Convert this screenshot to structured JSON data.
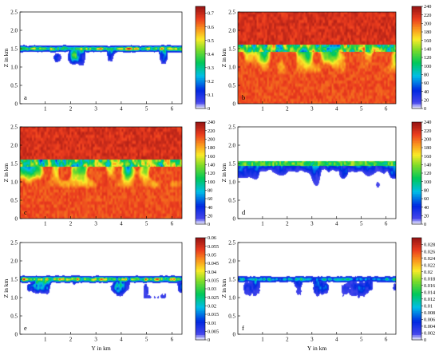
{
  "chart_data": [
    {
      "panel": "a",
      "type": "heatmap",
      "variant": "sparse",
      "colormap": "rainbow_white_low",
      "ylabel": "Z in km",
      "xlabel": "",
      "xlim": [
        0,
        6.4
      ],
      "ylim": [
        0,
        2.5
      ],
      "x_ticks": [
        1,
        2,
        3,
        4,
        5,
        6
      ],
      "y_ticks": [
        0,
        0.5,
        1.0,
        1.5,
        2.0,
        2.5
      ],
      "y_tick_labels": [
        "0",
        "0.5",
        "1.0",
        "1.5",
        "2.0",
        "2.5"
      ],
      "show_x_tick_labels": true,
      "colorbar": {
        "min": 0,
        "max": 0.75,
        "ticks": [
          0,
          0.1,
          0.2,
          0.3,
          0.4,
          0.5,
          0.6,
          0.7
        ],
        "tick_labels": [
          "0",
          "0.1",
          "0.2",
          "0.3",
          "0.4",
          "0.5",
          "0.6",
          "0.7"
        ]
      },
      "field": {
        "layer_center_km": 1.5,
        "layer_peak": 0.6,
        "background": 0
      }
    },
    {
      "panel": "b",
      "type": "heatmap",
      "variant": "mixed_layer",
      "colormap": "rainbow_white_low",
      "ylabel": "Z in km",
      "xlabel": "",
      "xlim": [
        0,
        6.4
      ],
      "ylim": [
        0,
        2.5
      ],
      "x_ticks": [
        1,
        2,
        3,
        4,
        5,
        6
      ],
      "y_ticks": [
        0,
        0.5,
        1.0,
        1.5,
        2.0,
        2.5
      ],
      "y_tick_labels": [
        "0",
        "0.5",
        "1.0",
        "1.5",
        "2.0",
        "2.5"
      ],
      "show_x_tick_labels": true,
      "colorbar": {
        "min": 0,
        "max": 240,
        "ticks": [
          0,
          20,
          40,
          60,
          80,
          100,
          120,
          140,
          160,
          180,
          200,
          220,
          240
        ],
        "tick_labels": [
          "0",
          "20",
          "40",
          "60",
          "80",
          "100",
          "120",
          "140",
          "160",
          "180",
          "200",
          "220",
          "240"
        ]
      },
      "field": {
        "layer_center_km": 1.5,
        "background": 225
      }
    },
    {
      "panel": "c",
      "type": "heatmap",
      "variant": "mixed_layer",
      "colormap": "rainbow_white_low",
      "ylabel": "Z in km",
      "xlabel": "",
      "xlim": [
        0,
        6.4
      ],
      "ylim": [
        0,
        2.5
      ],
      "x_ticks": [
        1,
        2,
        3,
        4,
        5,
        6
      ],
      "y_ticks": [
        0,
        0.5,
        1.0,
        1.5,
        2.0,
        2.5
      ],
      "y_tick_labels": [
        "0",
        "0.5",
        "1.0",
        "1.5",
        "2.0",
        "2.5"
      ],
      "show_x_tick_labels": true,
      "colorbar": {
        "min": 0,
        "max": 240,
        "ticks": [
          0,
          20,
          40,
          60,
          80,
          100,
          120,
          140,
          160,
          180,
          200,
          220,
          240
        ],
        "tick_labels": [
          "0",
          "20",
          "40",
          "60",
          "80",
          "100",
          "120",
          "140",
          "160",
          "180",
          "200",
          "220",
          "240"
        ]
      },
      "field": {
        "layer_center_km": 1.5,
        "background": 225
      }
    },
    {
      "panel": "d",
      "type": "heatmap",
      "variant": "below_layer",
      "colormap": "rainbow_white_low",
      "ylabel": "Z in km",
      "xlabel": "",
      "xlim": [
        0,
        6.4
      ],
      "ylim": [
        0,
        2.5
      ],
      "x_ticks": [
        1,
        2,
        3,
        4,
        5,
        6
      ],
      "y_ticks": [
        0,
        0.5,
        1.0,
        1.5,
        2.0,
        2.5
      ],
      "y_tick_labels": [
        "0",
        "0.5",
        "1.0",
        "1.5",
        "2.0",
        "2.5"
      ],
      "show_x_tick_labels": true,
      "colorbar": {
        "min": 0,
        "max": 240,
        "ticks": [
          0,
          20,
          40,
          60,
          80,
          100,
          120,
          140,
          160,
          180,
          200,
          220,
          240
        ],
        "tick_labels": [
          "0",
          "20",
          "40",
          "60",
          "80",
          "100",
          "120",
          "140",
          "160",
          "180",
          "200",
          "220",
          "240"
        ]
      },
      "field": {
        "layer_center_km": 1.5,
        "background": 0
      }
    },
    {
      "panel": "e",
      "type": "heatmap",
      "variant": "sparse",
      "colormap": "rainbow_white_low",
      "ylabel": "Z in km",
      "xlabel": "Y in km",
      "xlim": [
        0,
        6.4
      ],
      "ylim": [
        0,
        2.5
      ],
      "x_ticks": [
        1,
        2,
        3,
        4,
        5,
        6
      ],
      "y_ticks": [
        0,
        0.5,
        1.0,
        1.5,
        2.0,
        2.5
      ],
      "y_tick_labels": [
        "0",
        "0.5",
        "1.0",
        "1.5",
        "2.0",
        "2.5"
      ],
      "show_x_tick_labels": true,
      "colorbar": {
        "min": 0,
        "max": 0.06,
        "ticks": [
          0,
          0.005,
          0.01,
          0.015,
          0.02,
          0.025,
          0.03,
          0.035,
          0.04,
          0.045,
          0.05,
          0.055,
          0.06
        ],
        "tick_labels": [
          "0",
          "0.005",
          "0.01",
          "0.015",
          "0.02",
          "0.025",
          "0.03",
          "0.035",
          "0.04",
          "0.045",
          "0.05",
          "0.055",
          "0.06"
        ]
      },
      "field": {
        "layer_center_km": 1.5,
        "background": 0
      }
    },
    {
      "panel": "f",
      "type": "heatmap",
      "variant": "sparse_weak",
      "colormap": "rainbow_white_low",
      "ylabel": "Z in km",
      "xlabel": "Y in km",
      "xlim": [
        0,
        6.4
      ],
      "ylim": [
        0,
        2.5
      ],
      "x_ticks": [
        1,
        2,
        3,
        4,
        5,
        6
      ],
      "y_ticks": [
        0,
        0.5,
        1.0,
        1.5,
        2.0,
        2.5
      ],
      "y_tick_labels": [
        "0",
        "0.5",
        "1.0",
        "1.5",
        "2.0",
        "2.5"
      ],
      "show_x_tick_labels": true,
      "colorbar": {
        "min": 0,
        "max": 0.03,
        "ticks": [
          0,
          0.002,
          0.004,
          0.006,
          0.008,
          0.01,
          0.012,
          0.014,
          0.016,
          0.018,
          0.02,
          0.022,
          0.024,
          0.026,
          0.028
        ],
        "tick_labels": [
          "0",
          "0.002",
          "0.004",
          "0.006",
          "0.008",
          "0.01",
          "0.012",
          "0.014",
          "0.016",
          "0.018",
          "0.02",
          "0.022",
          "0.024",
          "0.026",
          "0.028"
        ]
      },
      "field": {
        "layer_center_km": 1.5,
        "background": 0
      }
    }
  ]
}
